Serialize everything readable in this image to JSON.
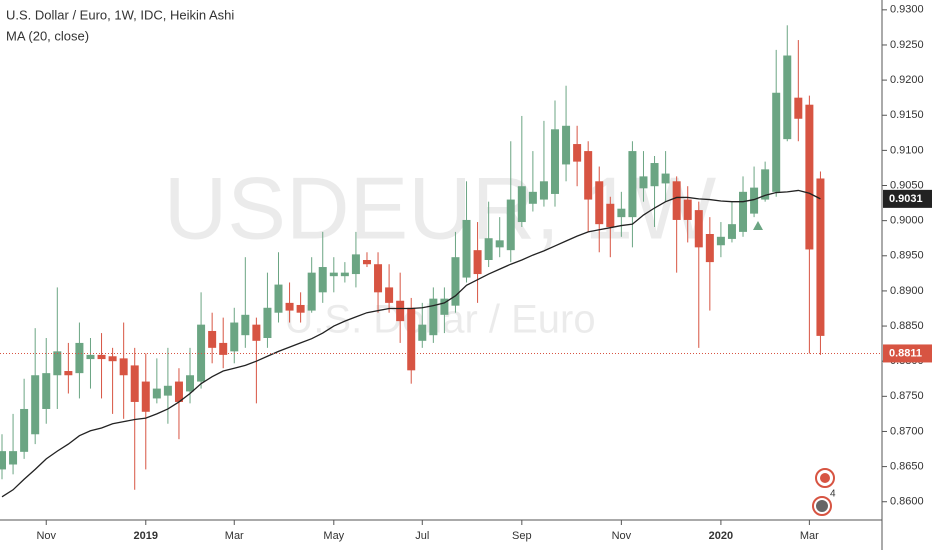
{
  "chart_data": {
    "type": "candlestick",
    "title": "U.S. Dollar / Euro, 1W, IDC, Heikin Ashi",
    "subtitle": "MA (20, close)",
    "watermark": "USDEUR, 1W",
    "watermark_subtitle": "U.S. Dollar / Euro",
    "events_badge": "4",
    "up_color": "#6ba583",
    "down_color": "#d75442",
    "categories": [
      null,
      null,
      null,
      null,
      "Nov",
      null,
      null,
      null,
      null,
      null,
      null,
      null,
      null,
      "2019",
      null,
      null,
      null,
      null,
      null,
      null,
      null,
      "Mar",
      null,
      null,
      null,
      null,
      null,
      null,
      null,
      null,
      "May",
      null,
      null,
      null,
      null,
      null,
      null,
      null,
      "Jul",
      null,
      null,
      null,
      null,
      null,
      null,
      null,
      null,
      "Sep",
      null,
      null,
      null,
      null,
      null,
      null,
      null,
      null,
      "Nov",
      null,
      null,
      null,
      null,
      null,
      null,
      null,
      null,
      "2020",
      null,
      null,
      null,
      null,
      null,
      null,
      null,
      "Mar",
      null
    ],
    "open": [
      0.8646,
      0.8653,
      0.8671,
      0.8696,
      0.8732,
      0.878,
      0.8786,
      0.8783,
      0.8803,
      0.8809,
      0.8807,
      0.8804,
      0.8794,
      0.8771,
      0.8747,
      0.8751,
      0.8771,
      0.8757,
      0.8771,
      0.8843,
      0.8826,
      0.8814,
      0.8837,
      0.8852,
      0.8833,
      0.8869,
      0.8883,
      0.888,
      0.8872,
      0.8898,
      0.8921,
      0.8921,
      0.8924,
      0.8944,
      0.8938,
      0.8905,
      0.8886,
      0.8876,
      0.8829,
      0.8837,
      0.8866,
      0.8879,
      0.8919,
      0.8958,
      0.8944,
      0.8962,
      0.8958,
      0.8998,
      0.9024,
      0.903,
      0.9038,
      0.908,
      0.9109,
      0.9099,
      0.9056,
      0.9024,
      0.9005,
      0.9005,
      0.9046,
      0.9049,
      0.9053,
      0.9056,
      0.903,
      0.9015,
      0.8981,
      0.8965,
      0.8974,
      0.8984,
      0.901,
      0.903,
      0.9041,
      0.9116,
      0.9175,
      0.9165,
      0.906
    ],
    "high": [
      0.8696,
      0.8725,
      0.8775,
      0.8847,
      0.8833,
      0.8905,
      0.8826,
      0.8855,
      0.8833,
      0.884,
      0.8819,
      0.8855,
      0.8819,
      0.8811,
      0.8804,
      0.8819,
      0.879,
      0.8819,
      0.8898,
      0.8869,
      0.8862,
      0.8876,
      0.8948,
      0.8862,
      0.8926,
      0.8955,
      0.8912,
      0.8898,
      0.8948,
      0.8984,
      0.8948,
      0.8941,
      0.8984,
      0.8955,
      0.8955,
      0.8938,
      0.8926,
      0.889,
      0.8883,
      0.8905,
      0.8905,
      0.8984,
      0.9056,
      0.8998,
      0.9027,
      0.9005,
      0.9113,
      0.9149,
      0.9099,
      0.9142,
      0.9171,
      0.9192,
      0.9135,
      0.9113,
      0.9077,
      0.9034,
      0.9041,
      0.9113,
      0.9099,
      0.9092,
      0.9099,
      0.9063,
      0.9049,
      0.9027,
      0.9005,
      0.8998,
      0.9027,
      0.9063,
      0.9077,
      0.9084,
      0.9243,
      0.9278,
      0.9257,
      0.9178,
      0.907
    ],
    "low": [
      0.8632,
      0.8639,
      0.8661,
      0.8682,
      0.8711,
      0.8732,
      0.8754,
      0.8747,
      0.8761,
      0.8747,
      0.8725,
      0.8718,
      0.8617,
      0.8646,
      0.874,
      0.8711,
      0.8689,
      0.874,
      0.8761,
      0.8797,
      0.879,
      0.8797,
      0.8819,
      0.874,
      0.8819,
      0.8855,
      0.8855,
      0.8855,
      0.8869,
      0.8883,
      0.8898,
      0.8912,
      0.8905,
      0.8934,
      0.8869,
      0.8869,
      0.8826,
      0.8768,
      0.8819,
      0.8826,
      0.884,
      0.8869,
      0.8912,
      0.8883,
      0.8934,
      0.8948,
      0.8941,
      0.8991,
      0.9013,
      0.902,
      0.902,
      0.9056,
      0.9049,
      0.8984,
      0.8955,
      0.8948,
      0.8977,
      0.8962,
      0.9027,
      0.8991,
      0.9027,
      0.8926,
      0.8969,
      0.8819,
      0.8872,
      0.8948,
      0.8969,
      0.8977,
      0.9005,
      0.9027,
      0.9034,
      0.9113,
      0.9113,
      0.8811,
      0.8809
    ],
    "close": [
      0.8672,
      0.8672,
      0.8732,
      0.878,
      0.8783,
      0.8814,
      0.878,
      0.8826,
      0.8809,
      0.8803,
      0.88,
      0.878,
      0.8742,
      0.8728,
      0.8761,
      0.8765,
      0.8742,
      0.878,
      0.8852,
      0.8819,
      0.8809,
      0.8855,
      0.8866,
      0.8829,
      0.8876,
      0.8909,
      0.8872,
      0.8869,
      0.8926,
      0.8934,
      0.8926,
      0.8926,
      0.8952,
      0.8938,
      0.8898,
      0.8883,
      0.8857,
      0.8787,
      0.8852,
      0.8889,
      0.8889,
      0.8948,
      0.9001,
      0.8924,
      0.8975,
      0.8972,
      0.903,
      0.9049,
      0.9041,
      0.9056,
      0.913,
      0.9135,
      0.9084,
      0.903,
      0.8995,
      0.8991,
      0.9017,
      0.9099,
      0.9063,
      0.9082,
      0.9067,
      0.9001,
      0.9001,
      0.8962,
      0.8941,
      0.8977,
      0.8995,
      0.9041,
      0.9047,
      0.9073,
      0.9182,
      0.9235,
      0.9145,
      0.8959,
      0.8836
    ],
    "ma": {
      "name": "MA (20, close)",
      "color": "#222222",
      "values": [
        0.8607,
        0.8617,
        0.8632,
        0.8646,
        0.8661,
        0.8672,
        0.8682,
        0.8694,
        0.8701,
        0.8705,
        0.8711,
        0.8714,
        0.8717,
        0.8719,
        0.8725,
        0.8732,
        0.8742,
        0.8754,
        0.8768,
        0.8778,
        0.8786,
        0.879,
        0.8794,
        0.88,
        0.8807,
        0.8814,
        0.882,
        0.8826,
        0.8832,
        0.884,
        0.885,
        0.8857,
        0.8863,
        0.8869,
        0.8872,
        0.8875,
        0.8875,
        0.8875,
        0.8876,
        0.8879,
        0.8883,
        0.8893,
        0.8908,
        0.8916,
        0.8924,
        0.8931,
        0.8938,
        0.8944,
        0.8951,
        0.8957,
        0.8964,
        0.8971,
        0.8978,
        0.8984,
        0.8987,
        0.899,
        0.8993,
        0.8995,
        0.9008,
        0.9018,
        0.9027,
        0.9033,
        0.9033,
        0.9031,
        0.903,
        0.9028,
        0.9027,
        0.9027,
        0.903,
        0.9036,
        0.904,
        0.9041,
        0.9043,
        0.9039,
        0.9031
      ]
    },
    "ma_last": 0.9031,
    "last_price": 0.8811,
    "ylim": [
      0.8574,
      0.9314
    ],
    "yticks": [
      {
        "value": 0.86,
        "label": "0.8600"
      },
      {
        "value": 0.865,
        "label": "0.8650"
      },
      {
        "value": 0.87,
        "label": "0.8700"
      },
      {
        "value": 0.875,
        "label": "0.8750"
      },
      {
        "value": 0.88,
        "label": "0.8800"
      },
      {
        "value": 0.885,
        "label": "0.8850"
      },
      {
        "value": 0.89,
        "label": "0.8900"
      },
      {
        "value": 0.895,
        "label": "0.8950"
      },
      {
        "value": 0.9,
        "label": "0.9000"
      },
      {
        "value": 0.905,
        "label": "0.9050"
      },
      {
        "value": 0.91,
        "label": "0.9100"
      },
      {
        "value": 0.915,
        "label": "0.9150"
      },
      {
        "value": 0.92,
        "label": "0.9200"
      },
      {
        "value": 0.925,
        "label": "0.9250"
      },
      {
        "value": 0.93,
        "label": "0.9300"
      }
    ]
  }
}
